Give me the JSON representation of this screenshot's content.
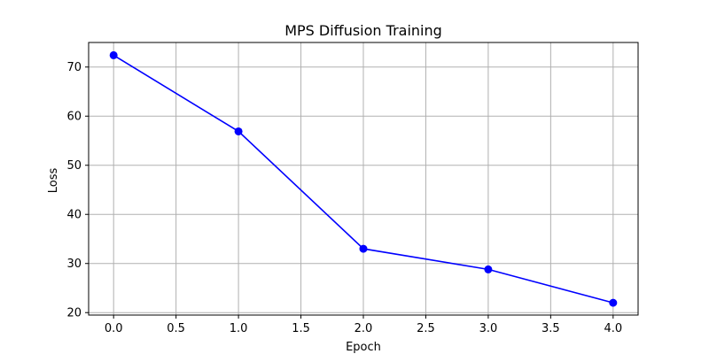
{
  "chart_data": {
    "type": "line",
    "title": "MPS Diffusion Training",
    "xlabel": "Epoch",
    "ylabel": "Loss",
    "xlim": [
      -0.2,
      4.2
    ],
    "ylim": [
      19.5,
      75
    ],
    "x_ticks": [
      "0.0",
      "0.5",
      "1.0",
      "1.5",
      "2.0",
      "2.5",
      "3.0",
      "3.5",
      "4.0"
    ],
    "y_ticks": [
      "20",
      "30",
      "40",
      "50",
      "60",
      "70"
    ],
    "grid": true,
    "series": [
      {
        "color": "#0000ff",
        "marker": "circle",
        "x": [
          0,
          1,
          2,
          3,
          4
        ],
        "y": [
          72.4,
          56.9,
          33.0,
          28.8,
          22.0
        ]
      }
    ]
  }
}
